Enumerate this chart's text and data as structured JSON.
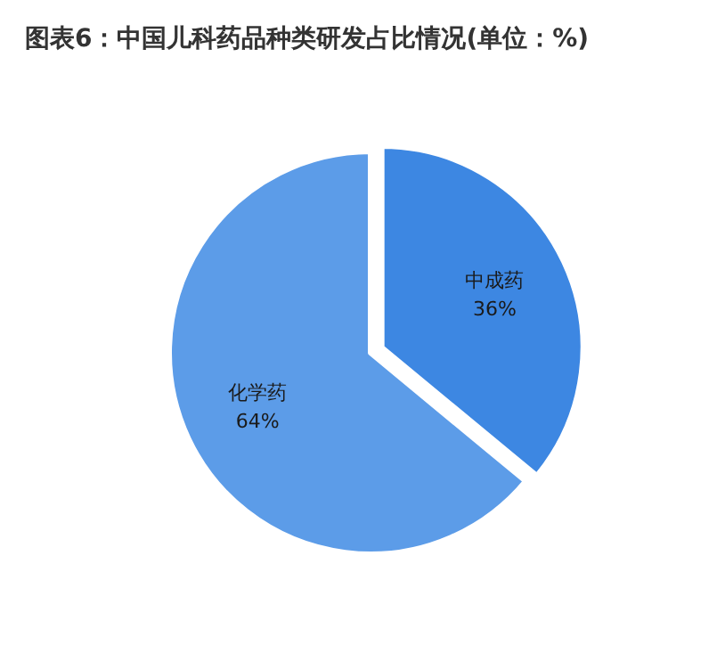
{
  "chart_data": {
    "type": "pie",
    "title": "图表6：中国儿科药品种类研发占比情况(单位：%)",
    "categories": [
      "中成药",
      "化学药"
    ],
    "values": [
      36,
      64
    ],
    "colors": [
      "#3d87e2",
      "#5c9ce8"
    ],
    "value_labels": [
      "36%",
      "64%"
    ],
    "legend": false
  }
}
